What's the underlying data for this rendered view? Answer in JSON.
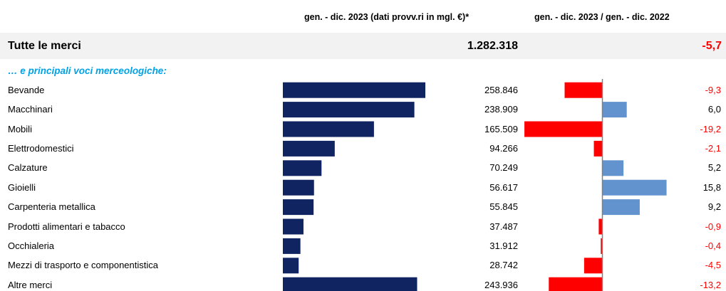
{
  "header": {
    "value_col": "gen. - dic. 2023 (dati provv.ri in mgl. €)*",
    "change_col": "gen. - dic. 2023 / gen. - dic. 2022"
  },
  "total": {
    "label": "Tutte le merci",
    "value": "1.282.318",
    "change": "-5,7"
  },
  "section_title": "… e principali voci merceologiche:",
  "colors": {
    "value_bar": "#0f2461",
    "positive": "#6393cf",
    "negative": "#ff0000",
    "axis": "#808080"
  },
  "chart_data": [
    {
      "type": "bar",
      "orientation": "horizontal",
      "categories": [
        "Bevande",
        "Macchinari",
        "Mobili",
        "Elettrodomestici",
        "Calzature",
        "Gioielli",
        "Carpenteria metallica",
        "Prodotti alimentari e tabacco",
        "Occhialeria",
        "Mezzi di trasporto e componentistica",
        "Altre merci"
      ],
      "values": [
        258846,
        238909,
        165509,
        94266,
        70249,
        56617,
        55845,
        37487,
        31912,
        28742,
        243936
      ],
      "labels": [
        "258.846",
        "238.909",
        "165.509",
        "94.266",
        "70.249",
        "56.617",
        "55.845",
        "37.487",
        "31.912",
        "28.742",
        "243.936"
      ],
      "ylabel": "gen. - dic. 2023 (dati provv.ri in mgl. €)*"
    },
    {
      "type": "bar",
      "orientation": "horizontal",
      "categories": [
        "Bevande",
        "Macchinari",
        "Mobili",
        "Elettrodomestici",
        "Calzature",
        "Gioielli",
        "Carpenteria metallica",
        "Prodotti alimentari e tabacco",
        "Occhialeria",
        "Mezzi di trasporto e componentistica",
        "Altre merci"
      ],
      "values": [
        -9.3,
        6.0,
        -19.2,
        -2.1,
        5.2,
        15.8,
        9.2,
        -0.9,
        -0.4,
        -4.5,
        -13.2
      ],
      "labels": [
        "-9,3",
        "6,0",
        "-19,2",
        "-2,1",
        "5,2",
        "15,8",
        "9,2",
        "-0,9",
        "-0,4",
        "-4,5",
        "-13,2"
      ],
      "ylabel": "gen. - dic. 2023 / gen. - dic. 2022"
    }
  ]
}
